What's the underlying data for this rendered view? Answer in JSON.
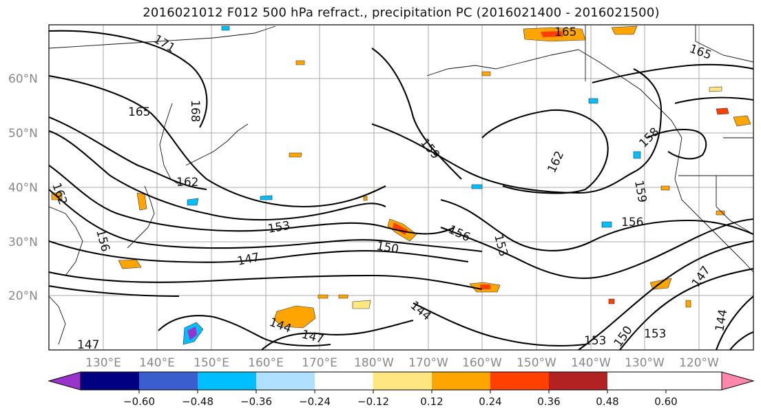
{
  "title": "2016021012 F012 500 hPa refract., precipitation PC (2016021400 - 2016021500)",
  "latitude_labels": [
    "60°N",
    "50°N",
    "40°N",
    "30°N",
    "20°N"
  ],
  "longitude_labels": [
    "130°E",
    "140°E",
    "150°E",
    "160°E",
    "170°E",
    "180°W",
    "170°W",
    "160°W",
    "150°W",
    "140°W",
    "130°W",
    "120°W"
  ],
  "contour_labels": [
    "171",
    "165",
    "168",
    "165",
    "162",
    "159",
    "162",
    "156",
    "153",
    "150",
    "147",
    "156",
    "153",
    "144",
    "147",
    "144",
    "153",
    "150",
    "153",
    "147",
    "144",
    "159",
    "156",
    "158",
    "165",
    "162",
    "147"
  ],
  "colorbar": {
    "tick_labels": [
      "−0.60",
      "−0.48",
      "−0.36",
      "−0.24",
      "−0.12",
      "0.12",
      "0.24",
      "0.36",
      "0.48",
      "0.60"
    ],
    "colors": [
      "#9933cc",
      "#000080",
      "#3a5fcd",
      "#00bfff",
      "#b0e0ff",
      "#ffffff",
      "#ffe680",
      "#ffa500",
      "#ff4000",
      "#b22222",
      "#ff88aa"
    ]
  }
}
